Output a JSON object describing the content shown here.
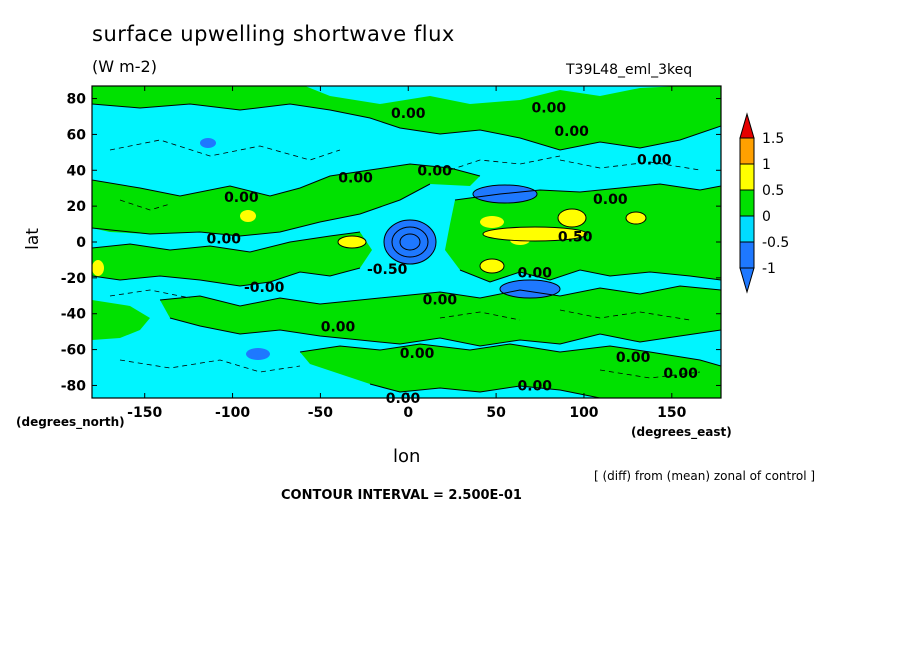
{
  "header": {
    "title": "surface upwelling shortwave flux",
    "units": "(W m-2)",
    "run": "T39L48_eml_3keq"
  },
  "footer": {
    "contour_interval": "CONTOUR INTERVAL = 2.500E-01",
    "note": "[ (diff) from (mean) zonal of control ]"
  },
  "chart_data": {
    "type": "heatmap",
    "title": "surface upwelling shortwave flux",
    "subtitle": "(W m-2)",
    "xlabel": "lon",
    "ylabel": "lat",
    "x_units": "(degrees_east)",
    "y_units": "(degrees_north)",
    "xlim": [
      -180,
      178
    ],
    "ylim": [
      -87,
      87
    ],
    "x_ticks": [
      "-150",
      "-100",
      "-50",
      "0",
      "50",
      "100",
      "150"
    ],
    "x_tick_values": [
      -150,
      -100,
      -50,
      0,
      50,
      100,
      150
    ],
    "y_ticks": [
      "80",
      "60",
      "40",
      "20",
      "0",
      "-20",
      "-40",
      "-60",
      "-80"
    ],
    "y_tick_values": [
      80,
      60,
      40,
      20,
      0,
      -20,
      -40,
      -60,
      -80
    ],
    "colorbar": {
      "labels": [
        "1.5",
        "1",
        "0.5",
        "0",
        "-0.5",
        "-1"
      ],
      "levels": [
        -1,
        -0.5,
        0,
        0.5,
        1,
        1.5
      ],
      "colors": [
        "#1e78ff",
        "#00dcff",
        "#00e100",
        "#ffff00",
        "#ffa000",
        "#e60000"
      ]
    },
    "colors": {
      "below_-1": "#1e78ff",
      "-0.5_to_0": "#00f5ff",
      "0_to_0.5": "#00e100",
      "0.5_to_1": "#ffff00",
      "1_to_1.5": "#ffa000",
      "above_1.5": "#e60000"
    },
    "contour_labels": [
      {
        "text": "0.00",
        "lon": 0,
        "lat": 72
      },
      {
        "text": "0.00",
        "lon": 80,
        "lat": 75
      },
      {
        "text": "0.00",
        "lon": 93,
        "lat": 62
      },
      {
        "text": "0.00",
        "lon": 140,
        "lat": 46
      },
      {
        "text": "0.00",
        "lon": 15,
        "lat": 40
      },
      {
        "text": "0.00",
        "lon": -30,
        "lat": 36
      },
      {
        "text": "0.00",
        "lon": -95,
        "lat": 25
      },
      {
        "text": "0.00",
        "lon": 115,
        "lat": 24
      },
      {
        "text": "0.00",
        "lon": -105,
        "lat": 2
      },
      {
        "text": "0.50",
        "lon": 95,
        "lat": 3
      },
      {
        "text": "-0.50",
        "lon": -12,
        "lat": -15
      },
      {
        "text": "0.00",
        "lon": 72,
        "lat": -17
      },
      {
        "text": "-0.00",
        "lon": -82,
        "lat": -25
      },
      {
        "text": "0.00",
        "lon": 18,
        "lat": -32
      },
      {
        "text": "0.00",
        "lon": -40,
        "lat": -47
      },
      {
        "text": "0.00",
        "lon": 5,
        "lat": -62
      },
      {
        "text": "0.00",
        "lon": 128,
        "lat": -64
      },
      {
        "text": "0.00",
        "lon": 155,
        "lat": -73
      },
      {
        "text": "0.00",
        "lon": 72,
        "lat": -80
      },
      {
        "text": "0.00",
        "lon": -3,
        "lat": -87
      }
    ],
    "grid": false,
    "legend": "right"
  }
}
